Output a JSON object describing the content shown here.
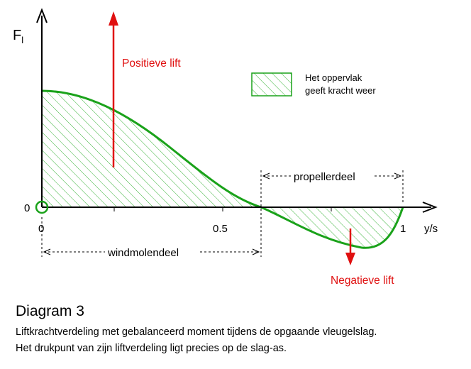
{
  "diagram": {
    "y_axis_label": "F",
    "y_axis_subscript": "l",
    "x_axis_label": "y/s",
    "origin_label": "0",
    "x_ticks": [
      "0",
      "0.5",
      "1"
    ],
    "positive_label": "Positieve lift",
    "negative_label": "Negatieve lift",
    "legend_line1": "Het oppervlak",
    "legend_line2": "geeft kracht weer",
    "windmill_label": "windmolendeel",
    "propeller_label": "propellerdeel",
    "colors": {
      "curve": "#1aa21a",
      "hatch": "#3cb43c",
      "arrow": "#e01010",
      "text_red": "#e01010",
      "axis": "#000000"
    }
  },
  "caption": {
    "title": "Diagram 3",
    "line1": "Liftkrachtverdeling met gebalanceerd moment tijdens de opgaande vleugelslag.",
    "line2": "Het drukpunt van zijn liftverdeling ligt precies op de slag-as."
  }
}
